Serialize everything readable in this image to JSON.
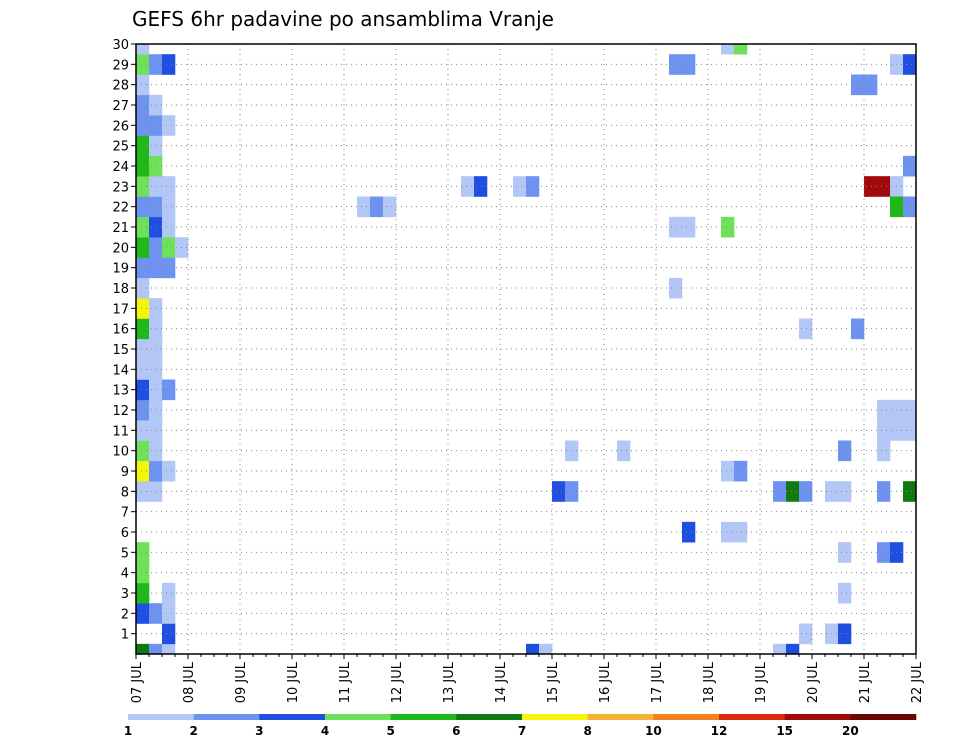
{
  "chart_data": {
    "type": "heatmap",
    "title": "GEFS 6hr padavine po ansamblima Vranje",
    "xlabel": "",
    "ylabel": "",
    "x_ticks": [
      "07 JUL",
      "08 JUL",
      "09 JUL",
      "10 JUL",
      "11 JUL",
      "12 JUL",
      "13 JUL",
      "14 JUL",
      "15 JUL",
      "16 JUL",
      "17 JUL",
      "18 JUL",
      "19 JUL",
      "20 JUL",
      "21 JUL",
      "22 JUL"
    ],
    "y_ticks": [
      "1",
      "2",
      "3",
      "4",
      "5",
      "6",
      "7",
      "8",
      "9",
      "10",
      "11",
      "12",
      "13",
      "14",
      "15",
      "16",
      "17",
      "18",
      "19",
      "20",
      "21",
      "22",
      "23",
      "24",
      "25",
      "26",
      "27",
      "28",
      "29",
      "30"
    ],
    "x_range_days": [
      0,
      15
    ],
    "y_range": [
      0,
      30
    ],
    "grid": true,
    "colorbar": {
      "levels": [
        "1",
        "2",
        "3",
        "4",
        "5",
        "6",
        "7",
        "8",
        "10",
        "12",
        "15",
        "20"
      ],
      "colors": [
        "#b3c7f7",
        "#6d92f0",
        "#1f4fe0",
        "#6fe05a",
        "#1fb818",
        "#0f7a0f",
        "#f5f50a",
        "#f5b234",
        "#f58020",
        "#e02a10",
        "#a00a0a",
        "#6a0505"
      ]
    },
    "cells": [
      [
        0.0,
        0,
        5
      ],
      [
        0.25,
        0,
        1
      ],
      [
        0.5,
        0,
        0
      ],
      [
        0.5,
        1,
        2
      ],
      [
        0.0,
        2,
        2
      ],
      [
        0.25,
        2,
        1
      ],
      [
        0.5,
        2,
        0
      ],
      [
        0.0,
        3,
        4
      ],
      [
        0.5,
        3,
        0
      ],
      [
        0.0,
        4,
        3
      ],
      [
        0.0,
        5,
        3
      ],
      [
        0.0,
        8,
        0
      ],
      [
        0.25,
        8,
        0
      ],
      [
        0.0,
        9,
        6
      ],
      [
        0.25,
        9,
        1
      ],
      [
        0.5,
        9,
        0
      ],
      [
        0.0,
        10,
        3
      ],
      [
        0.25,
        10,
        0
      ],
      [
        0.0,
        11,
        0
      ],
      [
        0.25,
        11,
        0
      ],
      [
        0.0,
        12,
        1
      ],
      [
        0.25,
        12,
        0
      ],
      [
        0.0,
        13,
        2
      ],
      [
        0.25,
        13,
        0
      ],
      [
        0.5,
        13,
        1
      ],
      [
        0.0,
        14,
        0
      ],
      [
        0.25,
        14,
        0
      ],
      [
        0.0,
        15,
        0
      ],
      [
        0.25,
        15,
        0
      ],
      [
        0.0,
        16,
        4
      ],
      [
        0.25,
        16,
        0
      ],
      [
        0.0,
        17,
        6
      ],
      [
        0.25,
        17,
        0
      ],
      [
        0.0,
        18,
        0
      ],
      [
        0.0,
        19,
        1
      ],
      [
        0.25,
        19,
        1
      ],
      [
        0.5,
        19,
        1
      ],
      [
        0.0,
        20,
        4
      ],
      [
        0.25,
        20,
        1
      ],
      [
        0.5,
        20,
        3
      ],
      [
        0.75,
        20,
        0
      ],
      [
        0.0,
        21,
        3
      ],
      [
        0.25,
        21,
        2
      ],
      [
        0.5,
        21,
        0
      ],
      [
        0.0,
        22,
        1
      ],
      [
        0.25,
        22,
        1
      ],
      [
        0.5,
        22,
        0
      ],
      [
        0.0,
        23,
        3
      ],
      [
        0.25,
        23,
        0
      ],
      [
        0.5,
        23,
        0
      ],
      [
        0.0,
        24,
        4
      ],
      [
        0.25,
        24,
        3
      ],
      [
        0.0,
        25,
        4
      ],
      [
        0.25,
        25,
        0
      ],
      [
        0.0,
        26,
        1
      ],
      [
        0.25,
        26,
        1
      ],
      [
        0.5,
        26,
        0
      ],
      [
        0.0,
        27,
        1
      ],
      [
        0.25,
        27,
        0
      ],
      [
        0.0,
        28,
        0
      ],
      [
        0.0,
        29,
        3
      ],
      [
        0.25,
        29,
        1
      ],
      [
        0.5,
        29,
        2
      ],
      [
        0.0,
        30,
        0
      ],
      [
        4.25,
        22,
        0
      ],
      [
        4.5,
        22,
        1
      ],
      [
        4.75,
        22,
        0
      ],
      [
        6.25,
        23,
        0
      ],
      [
        6.5,
        23,
        2
      ],
      [
        7.25,
        23,
        0
      ],
      [
        7.5,
        23,
        1
      ],
      [
        7.5,
        0,
        2
      ],
      [
        7.75,
        0,
        0
      ],
      [
        8.0,
        8,
        2
      ],
      [
        8.25,
        8,
        1
      ],
      [
        8.25,
        10,
        0
      ],
      [
        9.25,
        10,
        0
      ],
      [
        10.25,
        18,
        0
      ],
      [
        10.25,
        21,
        0
      ],
      [
        10.5,
        21,
        0
      ],
      [
        10.25,
        29,
        1
      ],
      [
        10.5,
        29,
        1
      ],
      [
        10.5,
        6,
        2
      ],
      [
        11.25,
        21,
        3
      ],
      [
        11.25,
        30,
        0
      ],
      [
        11.5,
        30,
        3
      ],
      [
        11.25,
        9,
        0
      ],
      [
        11.5,
        9,
        1
      ],
      [
        11.25,
        6,
        0
      ],
      [
        11.5,
        6,
        0
      ],
      [
        12.25,
        0,
        0
      ],
      [
        12.5,
        0,
        2
      ],
      [
        12.25,
        8,
        1
      ],
      [
        12.5,
        8,
        5
      ],
      [
        12.75,
        8,
        1
      ],
      [
        12.75,
        1,
        0
      ],
      [
        12.75,
        16,
        0
      ],
      [
        13.25,
        8,
        0
      ],
      [
        13.5,
        8,
        0
      ],
      [
        13.25,
        1,
        0
      ],
      [
        13.5,
        1,
        2
      ],
      [
        13.5,
        10,
        1
      ],
      [
        13.5,
        5,
        0
      ],
      [
        13.5,
        3,
        0
      ],
      [
        13.75,
        16,
        1
      ],
      [
        13.75,
        28,
        1
      ],
      [
        14.0,
        28,
        1
      ],
      [
        14.0,
        23,
        10
      ],
      [
        14.25,
        23,
        10
      ],
      [
        14.5,
        23,
        0
      ],
      [
        14.25,
        8,
        1
      ],
      [
        14.25,
        5,
        1
      ],
      [
        14.5,
        5,
        2
      ],
      [
        14.25,
        10,
        0
      ],
      [
        14.25,
        11,
        0
      ],
      [
        14.5,
        11,
        0
      ],
      [
        14.75,
        11,
        0
      ],
      [
        14.25,
        12,
        0
      ],
      [
        14.5,
        12,
        0
      ],
      [
        14.75,
        12,
        0
      ],
      [
        14.5,
        29,
        0
      ],
      [
        14.75,
        29,
        2
      ],
      [
        14.5,
        22,
        4
      ],
      [
        14.75,
        22,
        1
      ],
      [
        14.75,
        24,
        1
      ],
      [
        14.75,
        8,
        5
      ]
    ]
  }
}
